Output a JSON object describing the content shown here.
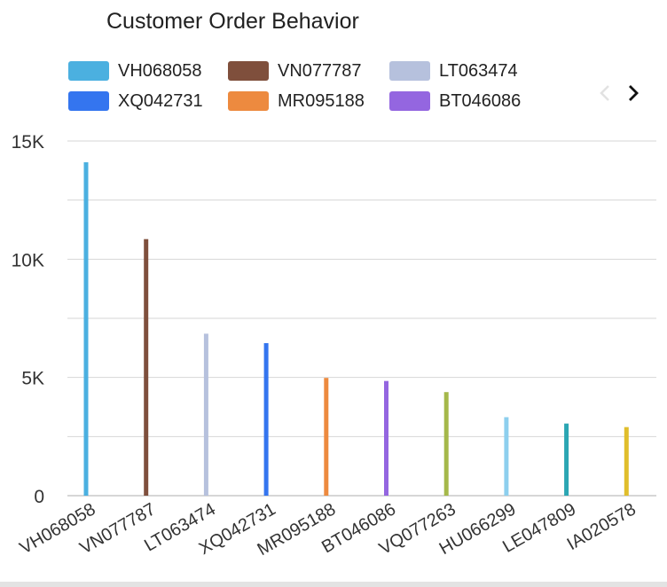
{
  "chart_data": {
    "type": "bar",
    "title": "Customer Order Behavior",
    "categories": [
      "VH068058",
      "VN077787",
      "LT063474",
      "XQ042731",
      "MR095188",
      "BT046086",
      "VQ077263",
      "HU066299",
      "LE047809",
      "IA020578"
    ],
    "values": [
      14100,
      10850,
      6850,
      6450,
      4980,
      4850,
      4380,
      3320,
      3050,
      2900
    ],
    "colors": [
      "#4bb0e0",
      "#7f4f3c",
      "#b6c1dd",
      "#3475ef",
      "#ed8a3f",
      "#9466e0",
      "#a5b84a",
      "#8dcfee",
      "#2ba6b3",
      "#e0be2c"
    ],
    "legend": [
      {
        "label": "VH068058",
        "color": "#4bb0e0"
      },
      {
        "label": "VN077787",
        "color": "#7f4f3c"
      },
      {
        "label": "LT063474",
        "color": "#b6c1dd"
      },
      {
        "label": "XQ042731",
        "color": "#3475ef"
      },
      {
        "label": "MR095188",
        "color": "#ed8a3f"
      },
      {
        "label": "BT046086",
        "color": "#9466e0"
      }
    ],
    "yticks": [
      {
        "value": 0,
        "label": "0"
      },
      {
        "value": 5000,
        "label": "5K"
      },
      {
        "value": 10000,
        "label": "10K"
      },
      {
        "value": 15000,
        "label": "15K"
      }
    ],
    "gridlines": [
      2500,
      5000,
      7500,
      10000,
      12500,
      15000
    ],
    "ylim": [
      0,
      15000
    ],
    "xlabel": "",
    "ylabel": "",
    "grid": true,
    "legend_position": "top"
  },
  "pager": {
    "prev_icon": "chevron-left-icon",
    "next_icon": "chevron-right-icon"
  }
}
